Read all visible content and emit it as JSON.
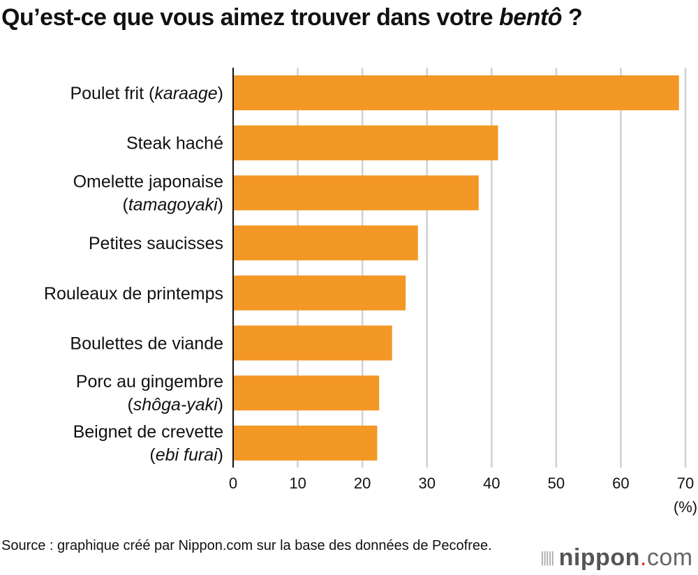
{
  "chart_data": {
    "type": "bar",
    "orientation": "horizontal",
    "title_main": "Qu’est-ce que vous aimez trouver dans votre ",
    "title_italic": "bentô",
    "title_end": " ?",
    "categories": [
      [
        "Poulet frit (",
        "karaage",
        ")"
      ],
      [
        "Steak haché"
      ],
      [
        "Omelette japonaise",
        "(",
        "tamagoyaki",
        ")"
      ],
      [
        "Petites saucisses"
      ],
      [
        "Rouleaux de printemps"
      ],
      [
        "Boulettes de viande"
      ],
      [
        "Porc au gingembre",
        "(",
        "shôga-yaki",
        ")"
      ],
      [
        "Beignet de crevette",
        "(",
        "ebi furai",
        ")"
      ]
    ],
    "values": [
      69.0,
      41.0,
      38.0,
      28.6,
      26.7,
      24.6,
      22.6,
      22.3
    ],
    "xticks": [
      "0",
      "10",
      "20",
      "30",
      "40",
      "50",
      "60",
      "70"
    ],
    "xlim": [
      0,
      70
    ],
    "xunit": "(%)",
    "grid": true,
    "bar_color": "#f39725"
  },
  "source": "Source : graphique créé par Nippon.com sur la base des données de Pecofree.",
  "logo": {
    "word": "nippon",
    "dot": ".",
    "suffix": "com"
  }
}
